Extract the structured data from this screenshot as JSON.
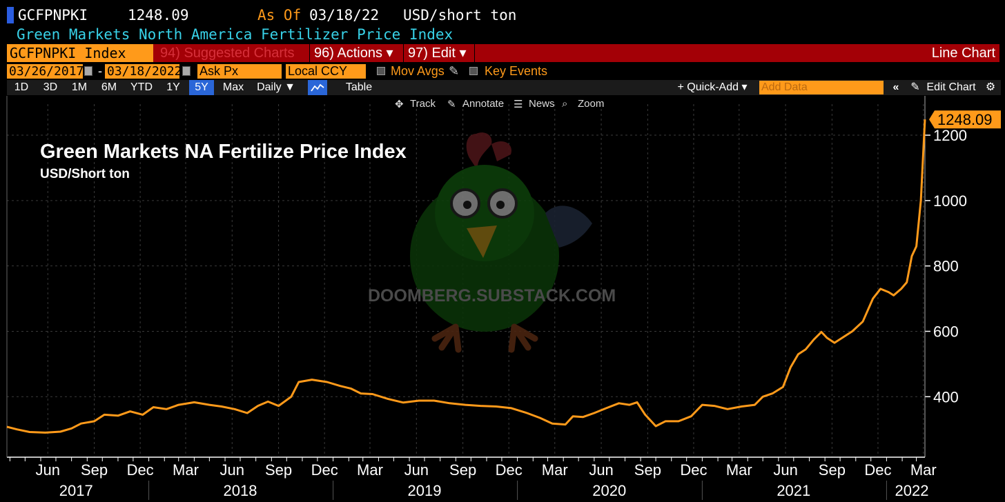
{
  "header": {
    "ticker": "GCFPNPKI",
    "price": "1248.09",
    "as_of_label": "As Of",
    "as_of_date": "03/18/22",
    "unit": "USD/short ton",
    "description": "Green Markets North America Fertilizer Price Index"
  },
  "menu": {
    "security": "GCFPNPKI Index",
    "suggested": "94) Suggested Charts",
    "actions": "96) Actions ▾",
    "edit": "97) Edit ▾",
    "chart_type": "Line Chart"
  },
  "settings": {
    "start_date": "03/26/2017",
    "dash": "-",
    "end_date": "03/18/2022",
    "field": "Ask Px",
    "currency": "Local CCY",
    "mov_avgs": "Mov Avgs",
    "key_events": "Key Events"
  },
  "periods": [
    "1D",
    "3D",
    "1M",
    "6M",
    "YTD",
    "1Y",
    "5Y",
    "Max"
  ],
  "active_period": "5Y",
  "toolbar": {
    "frequency": "Daily ▼",
    "table": "Table",
    "quick_add": "+ Quick-Add ▾",
    "add_data_placeholder": "Add Data",
    "collapse": "«",
    "edit_chart": "Edit Chart",
    "gear": "gear-icon"
  },
  "chart_tools": {
    "track": "Track",
    "annotate": "Annotate",
    "news": "News",
    "zoom": "Zoom"
  },
  "watermark": "DOOMBERG.SUBSTACK.COM",
  "colors": {
    "line": "#ff9a1a",
    "accent_red": "#a30006",
    "active_tab": "#2a66d8",
    "label_cyan": "#38d2e8"
  },
  "chart_data": {
    "type": "line",
    "title": "Green Markets NA Fertilize Price Index",
    "subtitle": "USD/Short ton",
    "ylim": [
      215,
      1295
    ],
    "yticks": [
      400,
      600,
      800,
      1000,
      1200
    ],
    "last_value_label": "1248.09",
    "x_month_labels": [
      "Jun",
      "Sep",
      "Dec",
      "Mar",
      "Jun",
      "Sep",
      "Dec",
      "Mar",
      "Jun",
      "Sep",
      "Dec",
      "Mar",
      "Jun",
      "Sep",
      "Dec",
      "Mar",
      "Jun",
      "Sep",
      "Dec",
      "Mar"
    ],
    "x_year_labels": [
      "2017",
      "2018",
      "2019",
      "2020",
      "2021",
      "2022"
    ],
    "grid": true,
    "series": [
      {
        "points": [
          [
            "2017-03-26",
            308
          ],
          [
            "2017-04-15",
            300
          ],
          [
            "2017-05-10",
            292
          ],
          [
            "2017-06-10",
            290
          ],
          [
            "2017-07-10",
            293
          ],
          [
            "2017-08-01",
            303
          ],
          [
            "2017-08-20",
            318
          ],
          [
            "2017-09-15",
            325
          ],
          [
            "2017-10-05",
            345
          ],
          [
            "2017-11-01",
            342
          ],
          [
            "2017-11-25",
            355
          ],
          [
            "2017-12-20",
            345
          ],
          [
            "2018-01-10",
            368
          ],
          [
            "2018-02-05",
            362
          ],
          [
            "2018-03-01",
            375
          ],
          [
            "2018-04-01",
            383
          ],
          [
            "2018-05-01",
            375
          ],
          [
            "2018-05-25",
            370
          ],
          [
            "2018-06-20",
            362
          ],
          [
            "2018-07-15",
            350
          ],
          [
            "2018-08-05",
            372
          ],
          [
            "2018-08-25",
            385
          ],
          [
            "2018-09-15",
            372
          ],
          [
            "2018-10-10",
            400
          ],
          [
            "2018-10-25",
            445
          ],
          [
            "2018-11-20",
            452
          ],
          [
            "2018-12-20",
            445
          ],
          [
            "2019-01-15",
            433
          ],
          [
            "2019-02-05",
            425
          ],
          [
            "2019-02-25",
            410
          ],
          [
            "2019-03-20",
            408
          ],
          [
            "2019-04-20",
            393
          ],
          [
            "2019-05-20",
            382
          ],
          [
            "2019-06-20",
            388
          ],
          [
            "2019-07-20",
            388
          ],
          [
            "2019-08-20",
            380
          ],
          [
            "2019-09-20",
            375
          ],
          [
            "2019-10-20",
            372
          ],
          [
            "2019-11-20",
            370
          ],
          [
            "2019-12-20",
            365
          ],
          [
            "2020-01-20",
            350
          ],
          [
            "2020-02-15",
            335
          ],
          [
            "2020-03-10",
            318
          ],
          [
            "2020-04-05",
            315
          ],
          [
            "2020-04-20",
            340
          ],
          [
            "2020-05-10",
            338
          ],
          [
            "2020-06-01",
            350
          ],
          [
            "2020-06-25",
            365
          ],
          [
            "2020-07-20",
            380
          ],
          [
            "2020-08-10",
            375
          ],
          [
            "2020-08-25",
            383
          ],
          [
            "2020-09-10",
            345
          ],
          [
            "2020-10-01",
            310
          ],
          [
            "2020-10-20",
            325
          ],
          [
            "2020-11-15",
            325
          ],
          [
            "2020-12-10",
            340
          ],
          [
            "2021-01-01",
            375
          ],
          [
            "2021-01-25",
            372
          ],
          [
            "2021-02-20",
            362
          ],
          [
            "2021-03-20",
            370
          ],
          [
            "2021-04-15",
            375
          ],
          [
            "2021-05-01",
            400
          ],
          [
            "2021-05-20",
            410
          ],
          [
            "2021-06-10",
            430
          ],
          [
            "2021-06-25",
            490
          ],
          [
            "2021-07-10",
            530
          ],
          [
            "2021-07-25",
            545
          ],
          [
            "2021-08-10",
            575
          ],
          [
            "2021-08-25",
            598
          ],
          [
            "2021-09-05",
            580
          ],
          [
            "2021-09-20",
            565
          ],
          [
            "2021-10-05",
            580
          ],
          [
            "2021-10-25",
            600
          ],
          [
            "2021-11-15",
            630
          ],
          [
            "2021-12-05",
            700
          ],
          [
            "2021-12-20",
            730
          ],
          [
            "2022-01-05",
            720
          ],
          [
            "2022-01-15",
            710
          ],
          [
            "2022-01-30",
            730
          ],
          [
            "2022-02-10",
            750
          ],
          [
            "2022-02-20",
            830
          ],
          [
            "2022-03-01",
            860
          ],
          [
            "2022-03-10",
            1000
          ],
          [
            "2022-03-18",
            1248.09
          ]
        ]
      }
    ]
  }
}
